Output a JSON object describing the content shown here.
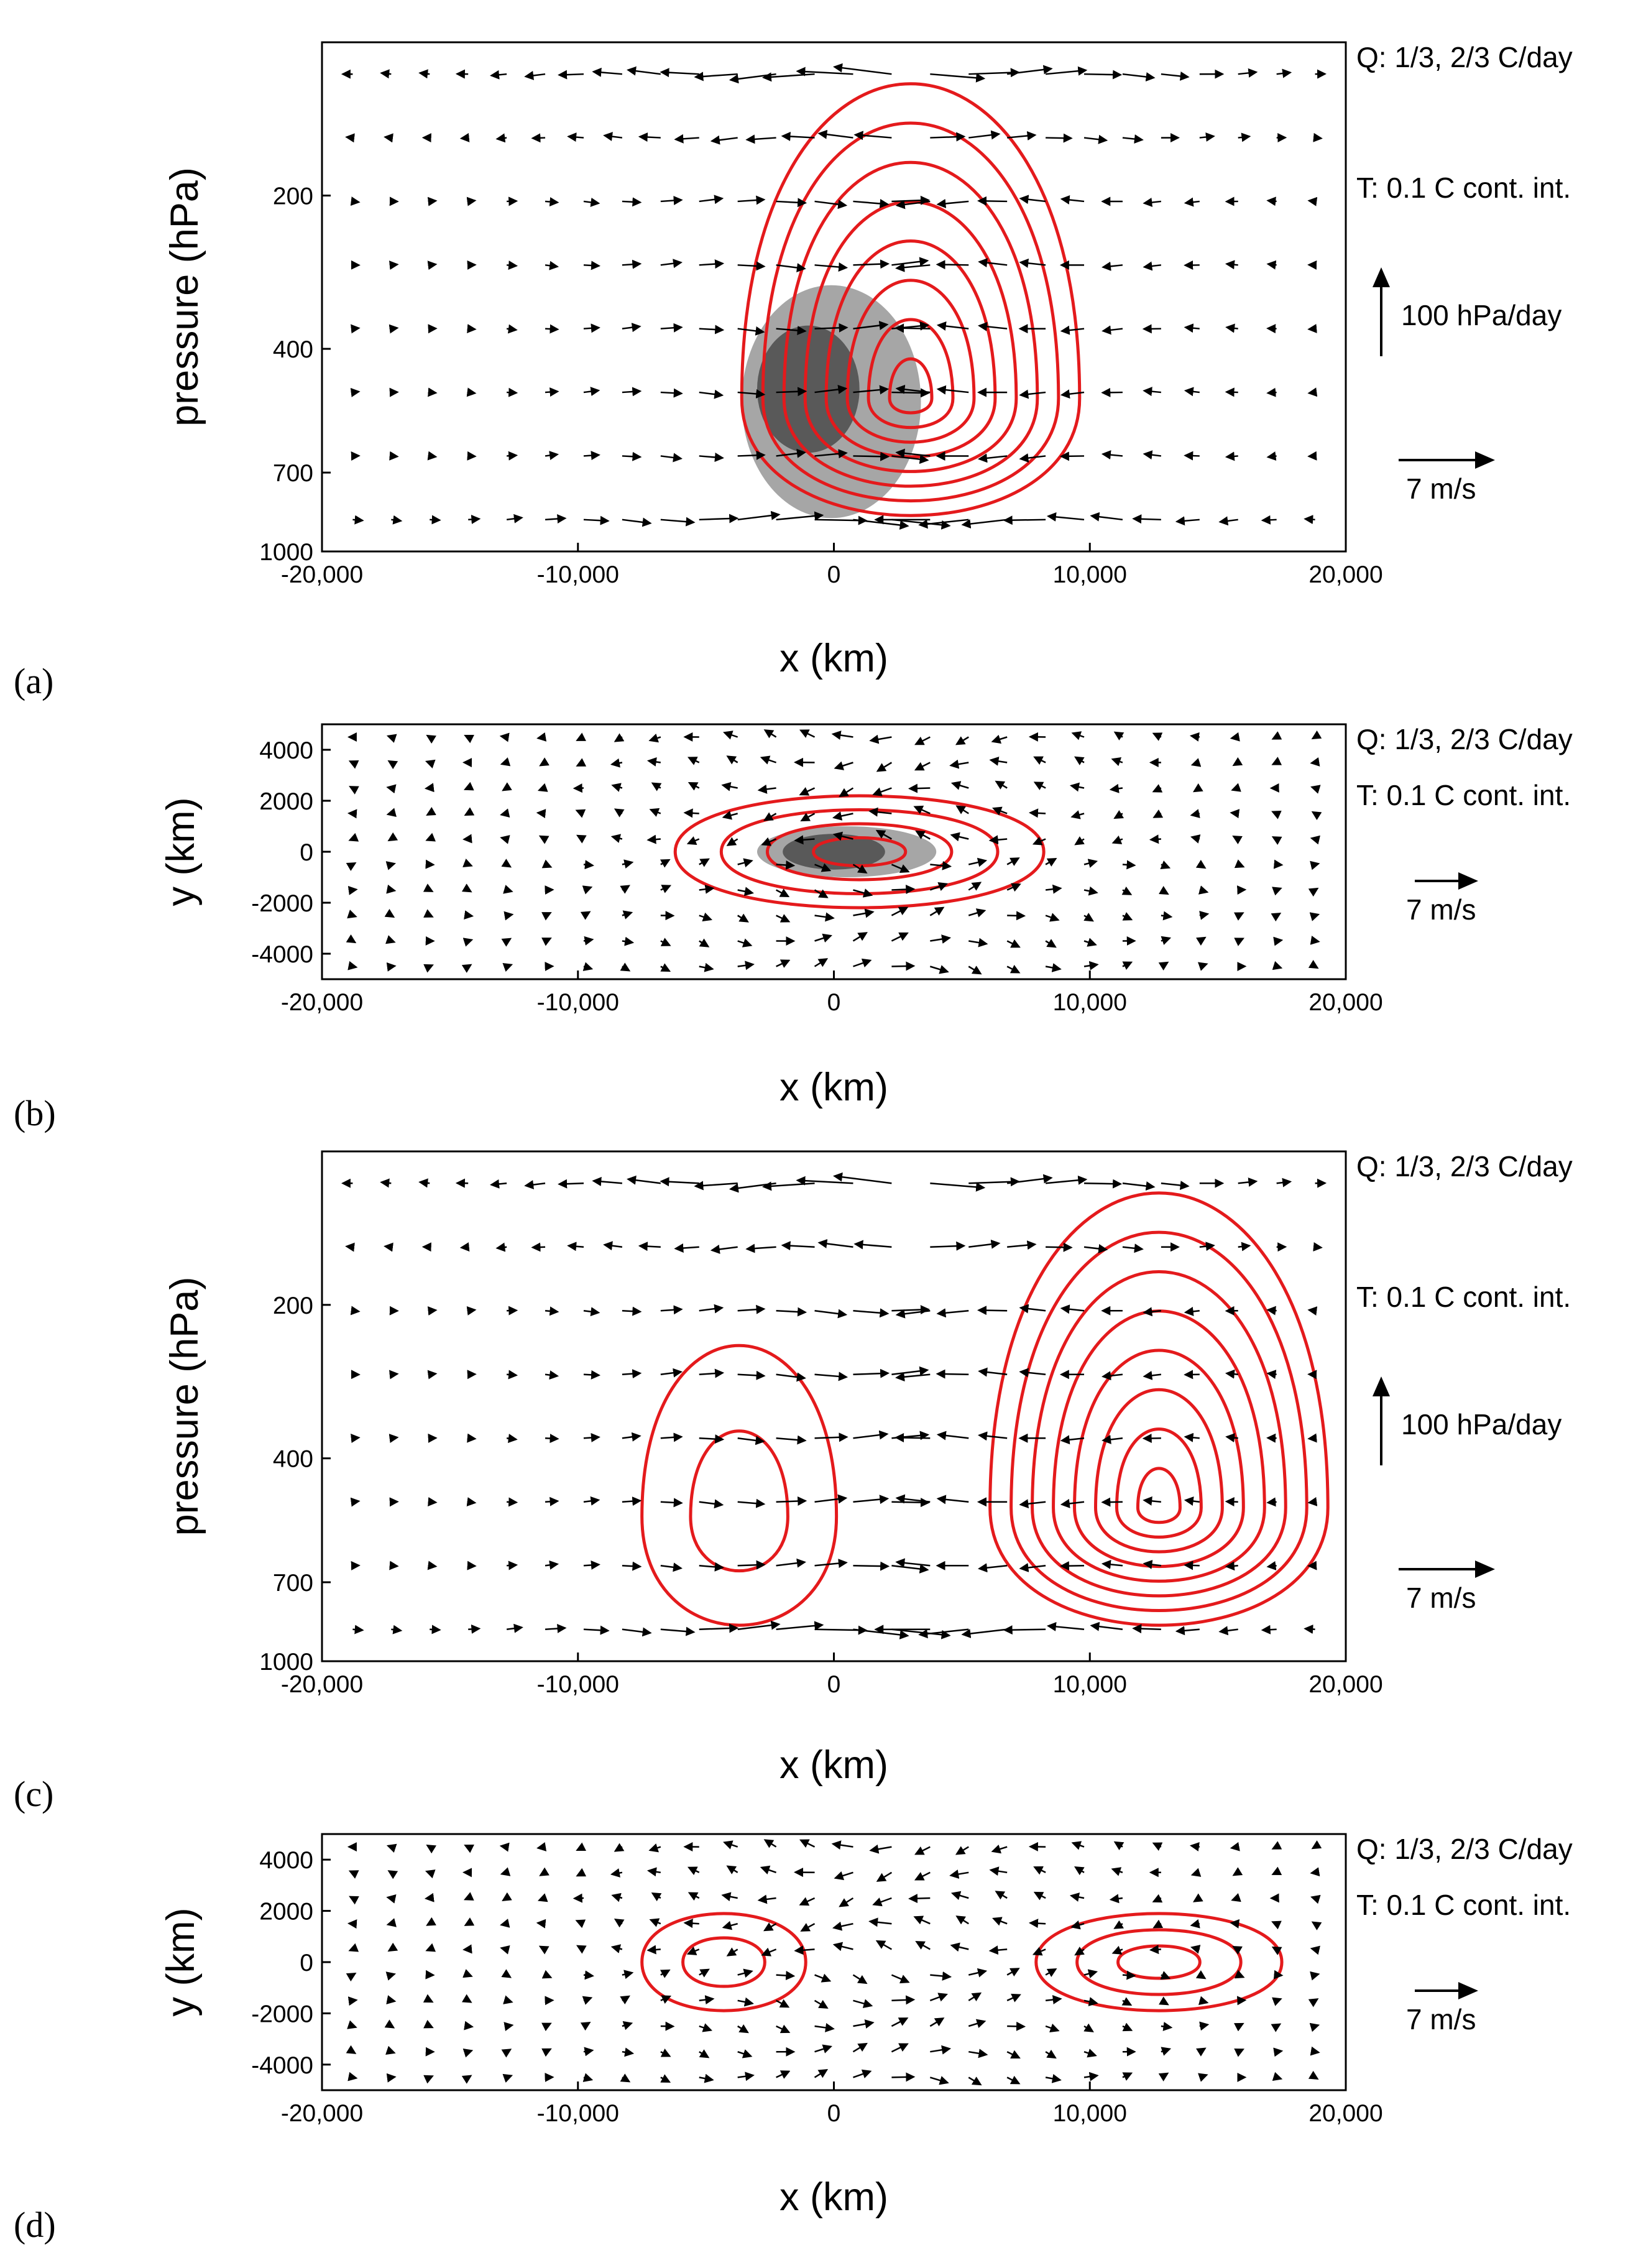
{
  "chart_data": [
    {
      "panel": "(a)",
      "type": "quiver_contour",
      "xlabel": "x (km)",
      "ylabel": "pressure (hPa)",
      "xlim": [
        -20000,
        20000
      ],
      "yscale": "log",
      "ylim": [
        1000,
        100
      ],
      "xticks": [
        -20000,
        -10000,
        0,
        10000,
        20000
      ],
      "xtick_labels": [
        "-20,000",
        "-10,000",
        "0",
        "10,000",
        "20,000"
      ],
      "yticks": [
        200,
        400,
        700,
        1000
      ],
      "ytick_labels": [
        "200",
        "400",
        "700",
        "1000"
      ],
      "annotations": [
        "Q: 1/3, 2/3 C/day",
        "T: 0.1 C cont. int."
      ],
      "vertical_key_label": "100 hPa/day",
      "horizontal_key_label": "7 m/s",
      "shading": [
        {
          "level": "1/3 C/day",
          "color": "#a6a6a6",
          "center": [
            -100,
            520
          ],
          "x_halfwidth": 3500,
          "p_range": [
            300,
            860
          ]
        },
        {
          "level": "2/3 C/day",
          "color": "#595959",
          "center": [
            -1000,
            490
          ],
          "x_halfwidth": 2000,
          "p_range": [
            360,
            640
          ]
        }
      ],
      "contours": {
        "color": "#e41a1c",
        "interval_C": 0.1,
        "center": [
          3000,
          500
        ],
        "levels": 8
      },
      "colors": {
        "contour": "#e41a1c",
        "vector": "#000000"
      }
    },
    {
      "panel": "(b)",
      "type": "quiver_contour",
      "xlabel": "x (km)",
      "ylabel": "y (km)",
      "xlim": [
        -20000,
        20000
      ],
      "ylim": [
        -5000,
        5000
      ],
      "xticks": [
        -20000,
        -10000,
        0,
        10000,
        20000
      ],
      "xtick_labels": [
        "-20,000",
        "-10,000",
        "0",
        "10,000",
        "20,000"
      ],
      "yticks": [
        4000,
        2000,
        0,
        -2000,
        -4000
      ],
      "ytick_labels": [
        "4000",
        "2000",
        "0",
        "-2000",
        "-4000"
      ],
      "annotations": [
        "Q: 1/3, 2/3 C/day",
        "T: 0.1 C cont. int."
      ],
      "horizontal_key_label": "7 m/s",
      "shading": [
        {
          "level": "1/3 C/day",
          "color": "#a6a6a6",
          "center": [
            500,
            0
          ],
          "x_halfwidth": 3500,
          "y_halfwidth": 1000
        },
        {
          "level": "2/3 C/day",
          "color": "#595959",
          "center": [
            0,
            0
          ],
          "x_halfwidth": 2000,
          "y_halfwidth": 700
        }
      ],
      "contours": {
        "color": "#e41a1c",
        "interval_C": 0.1,
        "center": [
          1000,
          0
        ],
        "levels": 4
      },
      "colors": {
        "contour": "#e41a1c",
        "vector": "#000000"
      }
    },
    {
      "panel": "(c)",
      "type": "quiver_contour",
      "xlabel": "x (km)",
      "ylabel": "pressure (hPa)",
      "xlim": [
        -20000,
        20000
      ],
      "yscale": "log",
      "ylim": [
        1000,
        100
      ],
      "xticks": [
        -20000,
        -10000,
        0,
        10000,
        20000
      ],
      "xtick_labels": [
        "-20,000",
        "-10,000",
        "0",
        "10,000",
        "20,000"
      ],
      "yticks": [
        200,
        400,
        700,
        1000
      ],
      "ytick_labels": [
        "200",
        "400",
        "700",
        "1000"
      ],
      "annotations": [
        "Q: 1/3, 2/3 C/day",
        "T: 0.1 C cont. int."
      ],
      "vertical_key_label": "100 hPa/day",
      "horizontal_key_label": "7 m/s",
      "contours": [
        {
          "color": "#e41a1c",
          "interval_C": 0.1,
          "center": [
            -3700,
            520
          ],
          "levels": 2
        },
        {
          "color": "#e41a1c",
          "interval_C": 0.1,
          "center": [
            12700,
            500
          ],
          "levels": 8
        }
      ],
      "colors": {
        "contour": "#e41a1c",
        "vector": "#000000"
      }
    },
    {
      "panel": "(d)",
      "type": "quiver_contour",
      "xlabel": "x (km)",
      "ylabel": "y (km)",
      "xlim": [
        -20000,
        20000
      ],
      "ylim": [
        -5000,
        5000
      ],
      "xticks": [
        -20000,
        -10000,
        0,
        10000,
        20000
      ],
      "xtick_labels": [
        "-20,000",
        "-10,000",
        "0",
        "10,000",
        "20,000"
      ],
      "yticks": [
        4000,
        2000,
        0,
        -2000,
        -4000
      ],
      "ytick_labels": [
        "4000",
        "2000",
        "0",
        "-2000",
        "-4000"
      ],
      "annotations": [
        "Q: 1/3, 2/3 C/day",
        "T: 0.1 C cont. int."
      ],
      "horizontal_key_label": "7 m/s",
      "contours": [
        {
          "color": "#e41a1c",
          "interval_C": 0.1,
          "center": [
            -4300,
            0
          ],
          "levels": 2
        },
        {
          "color": "#e41a1c",
          "interval_C": 0.1,
          "center": [
            12700,
            0
          ],
          "levels": 3
        }
      ],
      "colors": {
        "contour": "#e41a1c",
        "vector": "#000000"
      }
    }
  ]
}
